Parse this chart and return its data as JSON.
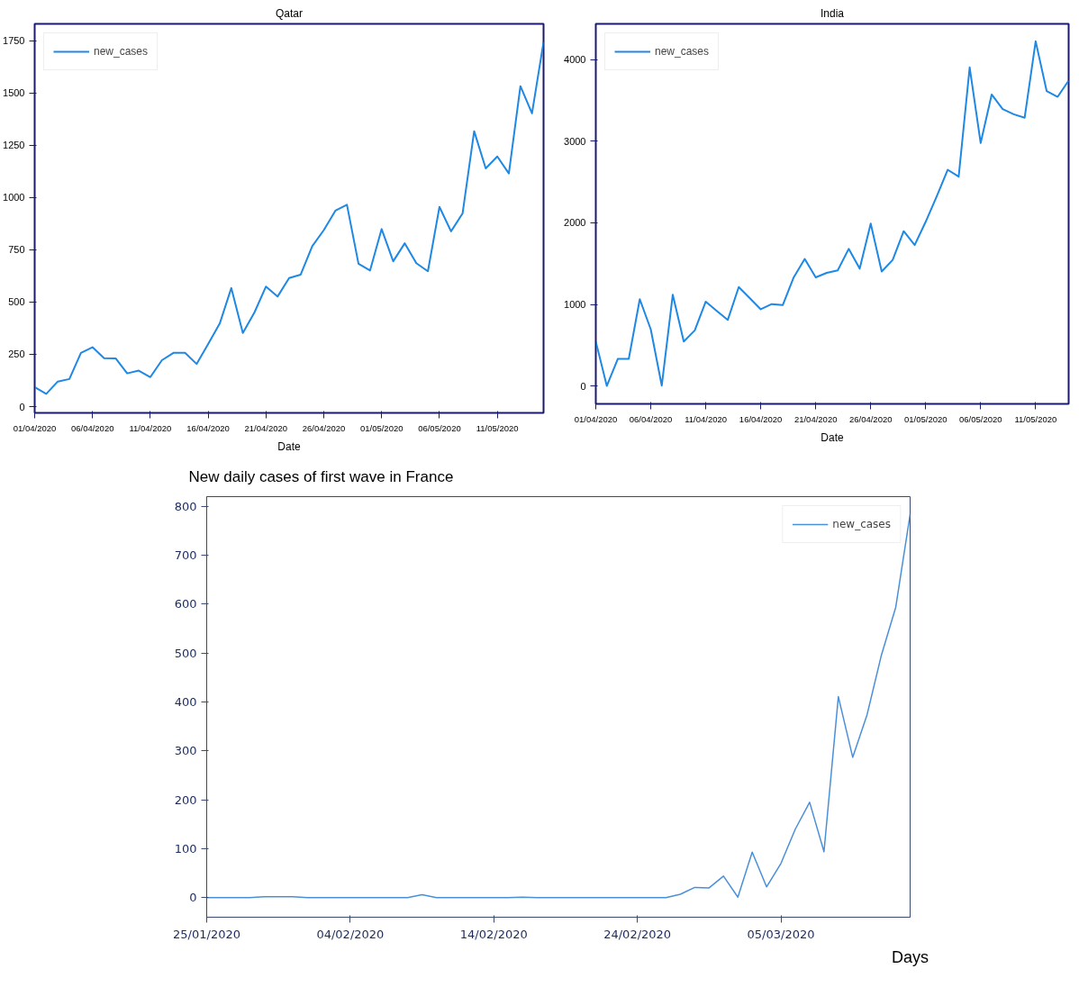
{
  "chart_data": [
    {
      "type": "line",
      "title": "Qatar",
      "xlabel": "Date",
      "legend": "top left",
      "grid": false,
      "x": [
        "2020-04-01",
        "2020-04-02",
        "2020-04-03",
        "2020-04-04",
        "2020-04-05",
        "2020-04-06",
        "2020-04-07",
        "2020-04-08",
        "2020-04-09",
        "2020-04-10",
        "2020-04-11",
        "2020-04-12",
        "2020-04-13",
        "2020-04-14",
        "2020-04-15",
        "2020-04-16",
        "2020-04-17",
        "2020-04-18",
        "2020-04-19",
        "2020-04-20",
        "2020-04-21",
        "2020-04-22",
        "2020-04-23",
        "2020-04-24",
        "2020-04-25",
        "2020-04-26",
        "2020-04-27",
        "2020-04-28",
        "2020-04-29",
        "2020-04-30",
        "2020-05-01",
        "2020-05-02",
        "2020-05-03",
        "2020-05-04",
        "2020-05-05",
        "2020-05-06",
        "2020-05-07",
        "2020-05-08",
        "2020-05-09",
        "2020-05-10",
        "2020-05-11",
        "2020-05-12",
        "2020-05-13",
        "2020-05-14",
        "2020-05-15"
      ],
      "series": [
        {
          "name": "new_cases",
          "color": "#1e88e5",
          "values": [
            93,
            61,
            120,
            132,
            257,
            284,
            232,
            231,
            159,
            172,
            141,
            222,
            257,
            257,
            204,
            299,
            397,
            567,
            352,
            450,
            574,
            526,
            615,
            631,
            767,
            844,
            937,
            965,
            683,
            651,
            849,
            695,
            781,
            686,
            647,
            955,
            838,
            924,
            1317,
            1139,
            1196,
            1115,
            1532,
            1402,
            1743
          ]
        }
      ],
      "xlim": [
        "2020-04-01",
        "2020-05-15"
      ],
      "ylim": [
        -30,
        1830
      ],
      "xticks": [
        {
          "value": "2020-04-01",
          "label": "01/04/2020"
        },
        {
          "value": "2020-04-06",
          "label": "06/04/2020"
        },
        {
          "value": "2020-04-11",
          "label": "11/04/2020"
        },
        {
          "value": "2020-04-16",
          "label": "16/04/2020"
        },
        {
          "value": "2020-04-21",
          "label": "21/04/2020"
        },
        {
          "value": "2020-04-26",
          "label": "26/04/2020"
        },
        {
          "value": "2020-05-01",
          "label": "01/05/2020"
        },
        {
          "value": "2020-05-06",
          "label": "06/05/2020"
        },
        {
          "value": "2020-05-11",
          "label": "11/05/2020"
        }
      ],
      "yticks": [
        0,
        250,
        500,
        750,
        1000,
        1250,
        1500,
        1750
      ]
    },
    {
      "type": "line",
      "title": "India",
      "xlabel": "Date",
      "legend": "top left",
      "grid": false,
      "x": [
        "2020-04-01",
        "2020-04-02",
        "2020-04-03",
        "2020-04-04",
        "2020-04-05",
        "2020-04-06",
        "2020-04-07",
        "2020-04-08",
        "2020-04-09",
        "2020-04-10",
        "2020-04-11",
        "2020-04-12",
        "2020-04-13",
        "2020-04-14",
        "2020-04-15",
        "2020-04-16",
        "2020-04-17",
        "2020-04-18",
        "2020-04-19",
        "2020-04-20",
        "2020-04-21",
        "2020-04-22",
        "2020-04-23",
        "2020-04-24",
        "2020-04-25",
        "2020-04-26",
        "2020-04-27",
        "2020-04-28",
        "2020-04-29",
        "2020-04-30",
        "2020-05-01",
        "2020-05-02",
        "2020-05-03",
        "2020-05-04",
        "2020-05-05",
        "2020-05-06",
        "2020-05-07",
        "2020-05-08",
        "2020-05-09",
        "2020-05-10",
        "2020-05-11",
        "2020-05-12",
        "2020-05-13",
        "2020-05-14"
      ],
      "series": [
        {
          "name": "new_cases",
          "color": "#1e88e5",
          "values": [
            545,
            0,
            332,
            332,
            1064,
            694,
            4,
            1119,
            545,
            681,
            1034,
            919,
            809,
            1213,
            1077,
            940,
            1004,
            991,
            1332,
            1557,
            1332,
            1387,
            1417,
            1681,
            1438,
            1991,
            1404,
            1545,
            1898,
            1728,
            2013,
            2323,
            2651,
            2566,
            3906,
            2979,
            3574,
            3396,
            3332,
            3289,
            4226,
            3617,
            3545,
            3745
          ]
        }
      ],
      "xlim": [
        "2020-04-01",
        "2020-05-14"
      ],
      "ylim": [
        -220,
        4440
      ],
      "xticks": [
        {
          "value": "2020-04-01",
          "label": "01/04/2020"
        },
        {
          "value": "2020-04-06",
          "label": "06/04/2020"
        },
        {
          "value": "2020-04-11",
          "label": "11/04/2020"
        },
        {
          "value": "2020-04-16",
          "label": "16/04/2020"
        },
        {
          "value": "2020-04-21",
          "label": "21/04/2020"
        },
        {
          "value": "2020-04-26",
          "label": "26/04/2020"
        },
        {
          "value": "2020-05-01",
          "label": "01/05/2020"
        },
        {
          "value": "2020-05-06",
          "label": "06/05/2020"
        },
        {
          "value": "2020-05-11",
          "label": "11/05/2020"
        }
      ],
      "yticks": [
        0,
        1000,
        2000,
        3000,
        4000
      ]
    },
    {
      "type": "line",
      "title": "New daily cases of first wave in France",
      "xlabel": "Days",
      "legend": "top right",
      "grid": false,
      "x": [
        "2020-01-25",
        "2020-01-26",
        "2020-01-27",
        "2020-01-28",
        "2020-01-29",
        "2020-01-30",
        "2020-01-31",
        "2020-02-01",
        "2020-02-02",
        "2020-02-03",
        "2020-02-04",
        "2020-02-05",
        "2020-02-06",
        "2020-02-07",
        "2020-02-08",
        "2020-02-09",
        "2020-02-10",
        "2020-02-11",
        "2020-02-12",
        "2020-02-13",
        "2020-02-14",
        "2020-02-15",
        "2020-02-16",
        "2020-02-17",
        "2020-02-18",
        "2020-02-19",
        "2020-02-20",
        "2020-02-21",
        "2020-02-22",
        "2020-02-23",
        "2020-02-24",
        "2020-02-25",
        "2020-02-26",
        "2020-02-27",
        "2020-02-28",
        "2020-02-29",
        "2020-03-01",
        "2020-03-02",
        "2020-03-03",
        "2020-03-04",
        "2020-03-05",
        "2020-03-06",
        "2020-03-07",
        "2020-03-08",
        "2020-03-09",
        "2020-03-10",
        "2020-03-11",
        "2020-03-12",
        "2020-03-13",
        "2020-03-14"
      ],
      "series": [
        {
          "name": "new_cases",
          "color": "#4a90d9",
          "values": [
            0,
            0,
            0,
            0,
            2,
            2,
            2,
            0,
            0,
            0,
            0,
            0,
            0,
            0,
            0,
            6,
            0,
            0,
            0,
            0,
            0,
            0,
            1,
            0,
            0,
            0,
            0,
            0,
            0,
            0,
            0,
            0,
            0,
            7,
            21,
            20,
            44,
            1,
            93,
            22,
            70,
            140,
            195,
            94,
            411,
            287,
            374,
            496,
            594,
            784
          ]
        }
      ],
      "xlim": [
        "2020-01-25",
        "2020-03-14"
      ],
      "ylim": [
        -40,
        820
      ],
      "xticks": [
        {
          "value": "2020-01-25",
          "label": "25/01/2020"
        },
        {
          "value": "2020-02-04",
          "label": "04/02/2020"
        },
        {
          "value": "2020-02-14",
          "label": "14/02/2020"
        },
        {
          "value": "2020-02-24",
          "label": "24/02/2020"
        },
        {
          "value": "2020-03-05",
          "label": "05/03/2020"
        }
      ],
      "yticks": [
        0,
        100,
        200,
        300,
        400,
        500,
        600,
        700,
        800
      ]
    }
  ]
}
